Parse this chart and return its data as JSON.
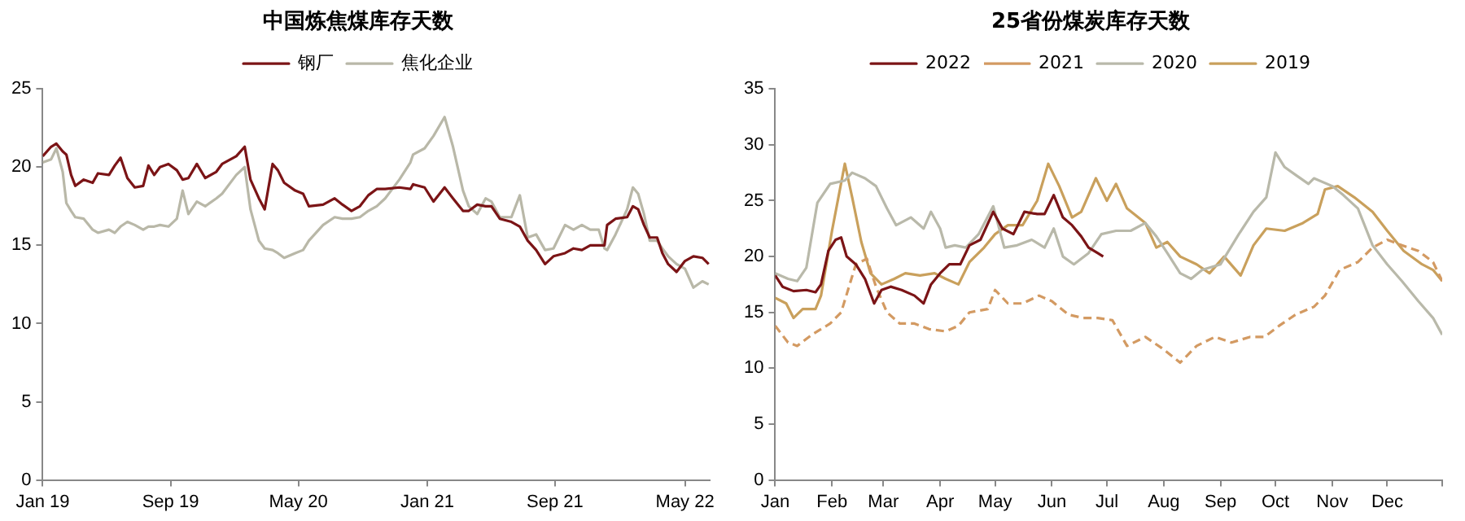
{
  "chart_data": [
    {
      "type": "line",
      "title": "中国炼焦煤库存天数",
      "legend": "top",
      "grid": false,
      "marker": "none",
      "xlim": [
        "2019-01-01",
        "2022-06-22"
      ],
      "ylim": [
        0,
        25
      ],
      "yticks": [
        0,
        5,
        10,
        15,
        20,
        25
      ],
      "xticks": [
        {
          "value": "2019-01-01",
          "label": "Jan 19"
        },
        {
          "value": "2019-09-01",
          "label": "Sep 19"
        },
        {
          "value": "2020-05-01",
          "label": "May 20"
        },
        {
          "value": "2021-01-01",
          "label": "Jan 21"
        },
        {
          "value": "2021-09-01",
          "label": "Sep 21"
        },
        {
          "value": "2022-05-06",
          "label": "May 22"
        }
      ],
      "x": [
        "2019-01-01",
        "2019-01-17",
        "2019-01-27",
        "2019-02-08",
        "2019-02-15",
        "2019-02-24",
        "2019-03-04",
        "2019-03-20",
        "2019-04-06",
        "2019-04-16",
        "2019-05-07",
        "2019-05-18",
        "2019-05-29",
        "2019-06-11",
        "2019-06-25",
        "2019-07-11",
        "2019-07-21",
        "2019-08-01",
        "2019-08-12",
        "2019-08-28",
        "2019-09-13",
        "2019-09-24",
        "2019-10-05",
        "2019-10-21",
        "2019-11-06",
        "2019-11-27",
        "2019-12-08",
        "2020-01-04",
        "2020-01-20",
        "2020-01-31",
        "2020-02-16",
        "2020-02-27",
        "2020-03-13",
        "2020-03-23",
        "2020-04-04",
        "2020-04-25",
        "2020-05-10",
        "2020-05-21",
        "2020-06-17",
        "2020-07-09",
        "2020-07-24",
        "2020-08-10",
        "2020-08-26",
        "2020-09-11",
        "2020-09-27",
        "2020-10-13",
        "2020-11-09",
        "2020-11-30",
        "2020-12-05",
        "2020-12-27",
        "2021-01-13",
        "2021-02-03",
        "2021-02-19",
        "2021-03-10",
        "2021-03-21",
        "2021-04-06",
        "2021-04-22",
        "2021-05-03",
        "2021-05-19",
        "2021-06-10",
        "2021-06-26",
        "2021-07-11",
        "2021-07-27",
        "2021-08-13",
        "2021-08-29",
        "2021-09-20",
        "2021-10-06",
        "2021-10-22",
        "2021-11-07",
        "2021-11-23",
        "2021-12-04",
        "2021-12-09",
        "2021-12-25",
        "2022-01-16",
        "2022-01-27",
        "2022-02-06",
        "2022-02-17",
        "2022-02-28",
        "2022-03-14",
        "2022-03-24",
        "2022-04-04",
        "2022-04-20",
        "2022-05-06",
        "2022-05-22",
        "2022-06-08",
        "2022-06-20"
      ],
      "series": [
        {
          "name": "钢厂",
          "color": "#7b1416",
          "values": [
            20.7,
            21.3,
            21.5,
            21.0,
            20.8,
            19.5,
            18.8,
            19.2,
            19.0,
            19.6,
            19.5,
            20.1,
            20.6,
            19.3,
            18.7,
            18.8,
            20.1,
            19.5,
            20.0,
            20.2,
            19.8,
            19.2,
            19.3,
            20.2,
            19.3,
            19.7,
            20.2,
            20.7,
            21.3,
            19.2,
            18.0,
            17.3,
            20.2,
            19.8,
            19.0,
            18.5,
            18.3,
            17.5,
            17.6,
            18.0,
            17.6,
            17.2,
            17.5,
            18.2,
            18.6,
            18.6,
            18.7,
            18.6,
            18.9,
            18.7,
            17.8,
            18.7,
            18.0,
            17.2,
            17.2,
            17.6,
            17.5,
            17.5,
            16.7,
            16.5,
            16.2,
            15.3,
            14.7,
            13.8,
            14.3,
            14.5,
            14.8,
            14.7,
            15.0,
            15.0,
            15.0,
            16.3,
            16.7,
            16.8,
            17.5,
            17.3,
            16.3,
            15.5,
            15.5,
            14.5,
            13.8,
            13.3,
            14.0,
            14.3,
            14.2,
            13.8
          ]
        },
        {
          "name": "焦化企业",
          "color": "#b9b8a8",
          "values": [
            20.3,
            20.5,
            21.2,
            19.7,
            17.7,
            17.2,
            16.8,
            16.7,
            16.0,
            15.8,
            16.0,
            15.8,
            16.2,
            16.5,
            16.3,
            16.0,
            16.2,
            16.2,
            16.3,
            16.2,
            16.7,
            18.5,
            17.0,
            17.8,
            17.5,
            18.0,
            18.3,
            19.5,
            20.0,
            17.3,
            15.3,
            14.8,
            14.7,
            14.5,
            14.2,
            14.5,
            14.7,
            15.3,
            16.3,
            16.8,
            16.7,
            16.7,
            16.8,
            17.2,
            17.5,
            18.0,
            19.2,
            20.3,
            20.8,
            21.2,
            22.0,
            23.2,
            21.3,
            18.5,
            17.5,
            17.0,
            18.0,
            17.8,
            16.8,
            16.8,
            18.2,
            15.5,
            15.7,
            14.7,
            14.8,
            16.3,
            16.0,
            16.3,
            16.0,
            16.0,
            14.8,
            14.7,
            15.7,
            17.3,
            18.7,
            18.3,
            17.0,
            15.3,
            15.3,
            14.8,
            14.3,
            13.8,
            13.5,
            12.3,
            12.7,
            12.5
          ]
        }
      ]
    },
    {
      "type": "line",
      "title": "25省份煤炭库存天数",
      "legend": "top",
      "grid": false,
      "marker": "none",
      "xlim": [
        "--01-01",
        "--12-31"
      ],
      "ylim": [
        0,
        35
      ],
      "yticks": [
        0,
        5,
        10,
        15,
        20,
        25,
        30,
        35
      ],
      "xticks": [
        {
          "value": "--01-01",
          "label": "Jan"
        },
        {
          "value": "--02-01",
          "label": "Feb"
        },
        {
          "value": "--03-01",
          "label": "Mar"
        },
        {
          "value": "--04-01",
          "label": "Apr"
        },
        {
          "value": "--05-01",
          "label": "May"
        },
        {
          "value": "--06-01",
          "label": "Jun"
        },
        {
          "value": "--07-01",
          "label": "Jul"
        },
        {
          "value": "--08-01",
          "label": "Aug"
        },
        {
          "value": "--09-01",
          "label": "Sep"
        },
        {
          "value": "--10-01",
          "label": "Oct"
        },
        {
          "value": "--11-01",
          "label": "Nov"
        },
        {
          "value": "--12-01",
          "label": "Dec"
        },
        {
          "value": "--12-31",
          "label": null
        }
      ],
      "series": [
        {
          "name": "2022",
          "color": "#7b1416",
          "line_style": "solid",
          "x": [
            "--01-01",
            "--01-05",
            "--01-11",
            "--01-18",
            "--01-23",
            "--01-26",
            "--01-30",
            "--02-03",
            "--02-06",
            "--02-09",
            "--02-14",
            "--02-19",
            "--02-24",
            "--02-28",
            "--03-05",
            "--03-11",
            "--03-18",
            "--03-23",
            "--03-27",
            "--04-01",
            "--04-06",
            "--04-12",
            "--04-17",
            "--04-23",
            "--04-30",
            "--05-05",
            "--05-11",
            "--05-17",
            "--05-24",
            "--05-28",
            "--06-02",
            "--06-07",
            "--06-12",
            "--06-17",
            "--06-21",
            "--06-26",
            "--06-29"
          ],
          "values": [
            18.3,
            17.3,
            16.9,
            17.0,
            16.8,
            17.5,
            20.5,
            21.5,
            21.7,
            20.0,
            19.3,
            18.0,
            15.8,
            17.0,
            17.3,
            17.0,
            16.5,
            15.8,
            17.5,
            18.5,
            19.3,
            19.3,
            21.0,
            21.5,
            24.0,
            22.5,
            22.0,
            24.0,
            23.8,
            23.8,
            25.5,
            23.5,
            22.8,
            21.8,
            20.8,
            20.3,
            20.0
          ]
        },
        {
          "name": "2021",
          "color": "#d39a62",
          "line_style": "dashed",
          "x": [
            "--01-01",
            "--01-08",
            "--01-13",
            "--01-21",
            "--01-31",
            "--02-06",
            "--02-14",
            "--02-20",
            "--02-25",
            "--03-03",
            "--03-10",
            "--03-18",
            "--03-26",
            "--04-04",
            "--04-11",
            "--04-17",
            "--04-27",
            "--05-01",
            "--05-08",
            "--05-16",
            "--05-25",
            "--06-01",
            "--06-10",
            "--06-18",
            "--06-26",
            "--07-04",
            "--07-12",
            "--07-22",
            "--07-31",
            "--08-10",
            "--08-19",
            "--08-29",
            "--09-07",
            "--09-17",
            "--09-25",
            "--10-03",
            "--10-12",
            "--10-22",
            "--10-28",
            "--11-05",
            "--11-15",
            "--11-23",
            "--12-01",
            "--12-09",
            "--12-18",
            "--12-26",
            "--12-31"
          ],
          "values": [
            13.8,
            12.3,
            12.0,
            13.0,
            14.0,
            15.0,
            19.3,
            19.8,
            17.3,
            15.0,
            14.0,
            14.0,
            13.5,
            13.3,
            13.8,
            15.0,
            15.3,
            17.0,
            15.8,
            15.8,
            16.5,
            16.0,
            14.8,
            14.5,
            14.5,
            14.3,
            12.0,
            12.8,
            11.8,
            10.5,
            12.0,
            12.8,
            12.3,
            12.8,
            12.8,
            13.8,
            14.8,
            15.5,
            16.5,
            18.8,
            19.5,
            20.8,
            21.5,
            21.0,
            20.5,
            19.5,
            17.8
          ]
        },
        {
          "name": "2020",
          "color": "#b9b9aa",
          "line_style": "solid",
          "x": [
            "--01-01",
            "--01-08",
            "--01-13",
            "--01-18",
            "--01-24",
            "--01-31",
            "--02-08",
            "--02-12",
            "--02-19",
            "--02-25",
            "--03-03",
            "--03-08",
            "--03-16",
            "--03-23",
            "--03-27",
            "--04-01",
            "--04-04",
            "--04-09",
            "--04-15",
            "--04-22",
            "--04-30",
            "--05-06",
            "--05-13",
            "--05-21",
            "--05-28",
            "--06-02",
            "--06-07",
            "--06-13",
            "--06-21",
            "--06-28",
            "--07-06",
            "--07-14",
            "--07-22",
            "--07-28",
            "--08-03",
            "--08-10",
            "--08-16",
            "--08-22",
            "--09-01",
            "--09-11",
            "--09-19",
            "--09-26",
            "--10-01",
            "--10-06",
            "--10-12",
            "--10-19",
            "--10-22",
            "--11-01",
            "--11-07",
            "--11-15",
            "--11-23",
            "--12-01",
            "--12-09",
            "--12-18",
            "--12-26",
            "--12-31"
          ],
          "values": [
            18.5,
            18.0,
            17.8,
            19.0,
            24.8,
            26.5,
            26.8,
            27.5,
            27.0,
            26.3,
            24.3,
            22.8,
            23.5,
            22.5,
            24.0,
            22.5,
            20.8,
            21.0,
            20.8,
            22.0,
            24.5,
            20.8,
            21.0,
            21.5,
            20.8,
            22.5,
            20.0,
            19.3,
            20.3,
            22.0,
            22.3,
            22.3,
            23.0,
            21.8,
            20.3,
            18.5,
            18.0,
            18.8,
            19.3,
            22.0,
            24.0,
            25.3,
            29.3,
            28.0,
            27.3,
            26.5,
            27.0,
            26.3,
            25.5,
            24.3,
            21.0,
            19.3,
            17.8,
            16.0,
            14.5,
            13.0
          ]
        },
        {
          "name": "2019",
          "color": "#c9a05c",
          "line_style": "solid",
          "x": [
            "--01-01",
            "--01-07",
            "--01-11",
            "--01-16",
            "--01-23",
            "--01-26",
            "--02-01",
            "--02-08",
            "--02-12",
            "--02-17",
            "--02-22",
            "--02-28",
            "--03-07",
            "--03-13",
            "--03-21",
            "--03-29",
            "--04-04",
            "--04-11",
            "--04-17",
            "--04-25",
            "--05-01",
            "--05-08",
            "--05-16",
            "--05-24",
            "--05-30",
            "--06-05",
            "--06-12",
            "--06-17",
            "--06-25",
            "--07-01",
            "--07-06",
            "--07-12",
            "--07-22",
            "--07-28",
            "--08-03",
            "--08-10",
            "--08-19",
            "--08-26",
            "--09-03",
            "--09-12",
            "--09-19",
            "--09-26",
            "--10-06",
            "--10-16",
            "--10-24",
            "--10-28",
            "--11-04",
            "--11-13",
            "--11-23",
            "--12-01",
            "--12-10",
            "--12-20",
            "--12-26",
            "--12-31"
          ],
          "values": [
            16.3,
            15.8,
            14.5,
            15.3,
            15.3,
            16.5,
            22.3,
            28.3,
            25.3,
            21.3,
            18.5,
            17.5,
            18.0,
            18.5,
            18.3,
            18.5,
            18.0,
            17.5,
            19.5,
            20.8,
            22.0,
            22.8,
            22.8,
            25.0,
            28.3,
            26.3,
            23.5,
            24.0,
            27.0,
            25.0,
            26.5,
            24.3,
            23.0,
            20.8,
            21.3,
            20.0,
            19.3,
            18.5,
            20.0,
            18.3,
            21.0,
            22.5,
            22.3,
            23.0,
            23.8,
            26.0,
            26.3,
            25.3,
            24.0,
            22.3,
            20.5,
            19.3,
            18.8,
            17.8
          ]
        }
      ]
    }
  ]
}
